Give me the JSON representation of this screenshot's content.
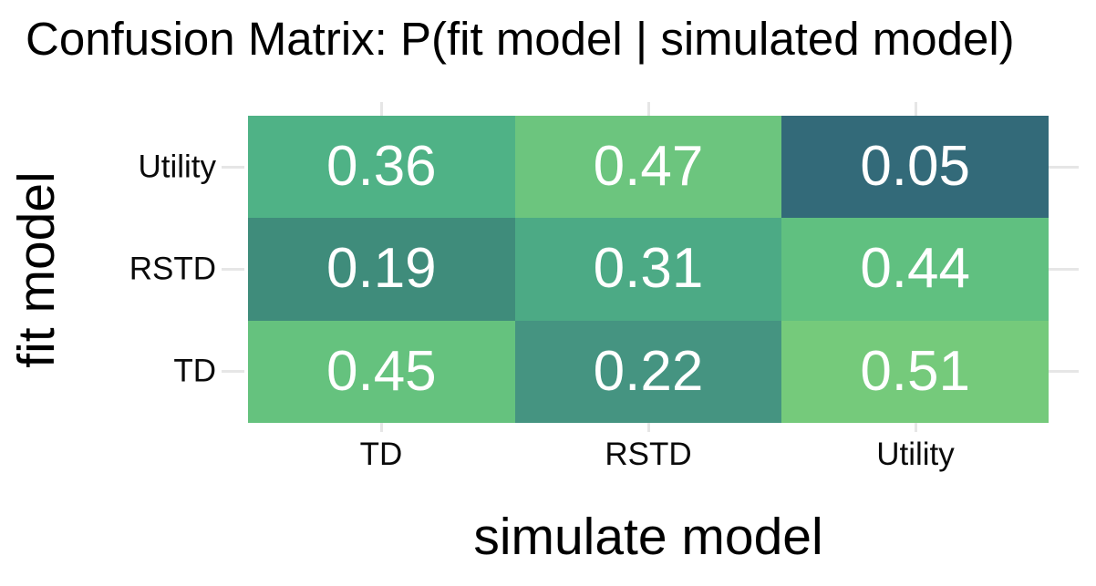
{
  "title": "Confusion Matrix: P(fit model | simulated model)",
  "chart_data": {
    "type": "heatmap",
    "title": "Confusion Matrix: P(fit model | simulated model)",
    "xlabel": "simulate model",
    "ylabel": "fit model",
    "x_categories": [
      "TD",
      "RSTD",
      "Utility"
    ],
    "y_categories": [
      "Utility",
      "RSTD",
      "TD"
    ],
    "values": [
      [
        0.36,
        0.47,
        0.05
      ],
      [
        0.19,
        0.31,
        0.44
      ],
      [
        0.45,
        0.22,
        0.51
      ]
    ],
    "cell_colors": [
      [
        "#4fb286",
        "#6cc57e",
        "#336a79"
      ],
      [
        "#3f8c7b",
        "#4caa85",
        "#60c080"
      ],
      [
        "#65c27e",
        "#459481",
        "#75ca7b"
      ]
    ],
    "value_text_color": "#ffffff",
    "label_text_color": "#000000",
    "gridline_color": "#e6e6e6",
    "background_color": "#ffffff",
    "legend": "none",
    "grid": "category-center stubs outside tile area"
  }
}
